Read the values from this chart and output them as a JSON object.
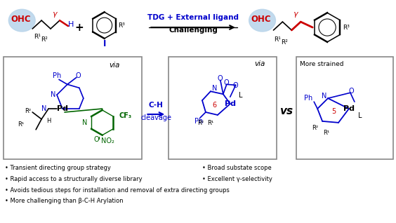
{
  "bg_color": "#ffffff",
  "blue": "#0000cc",
  "red": "#cc0000",
  "green": "#006400",
  "black": "#000000",
  "gray": "#888888",
  "light_blue_ellipse": "#b8d4ea",
  "arrow_label_top": "TDG + External ligand",
  "arrow_label_bottom": "Challenging",
  "ch_top": "C-H",
  "ch_bot": "cleavage",
  "via": "via",
  "vs": "vs",
  "more_strained": "More strained",
  "OHC": "OHC",
  "bullet_left": [
    "• Transient directing group strategy",
    "• Rapid access to a structurally diverse library",
    "• Avoids tedious steps for installation and removal of extra directing groups",
    "• More challenging than β-C-H Arylation"
  ],
  "bullet_right": [
    "• Broad substate scope",
    "• Excellent γ-selectivity"
  ]
}
